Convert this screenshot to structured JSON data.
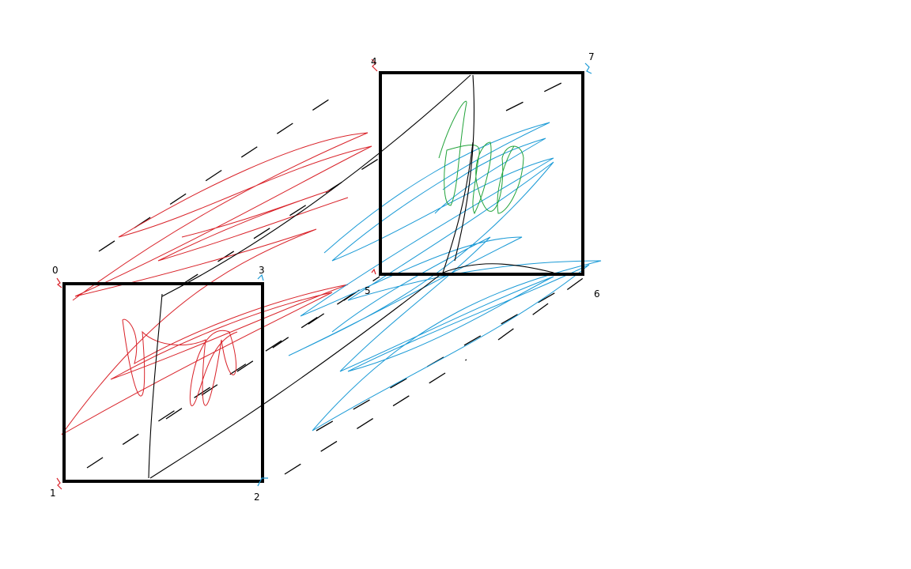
{
  "diagram": {
    "vertex_labels": [
      "0",
      "1",
      "2",
      "3",
      "4",
      "5",
      "6",
      "7"
    ],
    "colors": {
      "background": "#ffffff",
      "box_outline": "#000000",
      "dashed_edges": "#000000",
      "scribble_red": "#d9232a",
      "scribble_blue": "#1a9ad6",
      "scribble_green": "#22a33a"
    }
  }
}
